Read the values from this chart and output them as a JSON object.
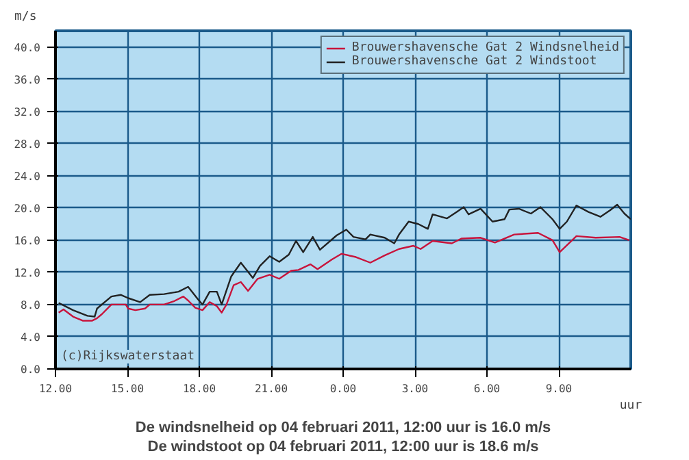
{
  "chart_data": {
    "type": "line",
    "xlabel": "uur",
    "ylabel": "m/s",
    "xlim": [
      "2011-02-03T12:00",
      "2011-02-04T12:00"
    ],
    "ylim": [
      0,
      42
    ],
    "xticks": [
      {
        "value": "2011-02-03T12:00",
        "label": "12.00"
      },
      {
        "value": "2011-02-03T15:00",
        "label": "15.00"
      },
      {
        "value": "2011-02-03T18:00",
        "label": "18.00"
      },
      {
        "value": "2011-02-03T21:00",
        "label": "21.00"
      },
      {
        "value": "2011-02-04T00:00",
        "label": "0.00"
      },
      {
        "value": "2011-02-04T03:00",
        "label": "3.00"
      },
      {
        "value": "2011-02-04T06:00",
        "label": "6.00"
      },
      {
        "value": "2011-02-04T09:00",
        "label": "9.00"
      }
    ],
    "yticks": [
      {
        "value": 0,
        "label": "0.0"
      },
      {
        "value": 4,
        "label": "4.0"
      },
      {
        "value": 8,
        "label": "8.0"
      },
      {
        "value": 12,
        "label": "12.0"
      },
      {
        "value": 16,
        "label": "16.0"
      },
      {
        "value": 20,
        "label": "20.0"
      },
      {
        "value": 24,
        "label": "24.0"
      },
      {
        "value": 28,
        "label": "28.0"
      },
      {
        "value": 32,
        "label": "32.0"
      },
      {
        "value": 36,
        "label": "36.0"
      },
      {
        "value": 40,
        "label": "40.0"
      }
    ],
    "grid": true,
    "legend": "top right",
    "series": [
      {
        "name": "Brouwershavensche Gat 2 Windsnelheid",
        "color": "#c8143c",
        "x": [
          "2011-02-03T12:08",
          "2011-02-03T12:20",
          "2011-02-03T12:44",
          "2011-02-03T13:08",
          "2011-02-03T13:32",
          "2011-02-03T13:44",
          "2011-02-03T13:56",
          "2011-02-03T14:20",
          "2011-02-03T14:56",
          "2011-02-03T15:02",
          "2011-02-03T15:20",
          "2011-02-03T15:44",
          "2011-02-03T15:56",
          "2011-02-03T16:32",
          "2011-02-03T16:56",
          "2011-02-03T17:20",
          "2011-02-03T17:32",
          "2011-02-03T17:50",
          "2011-02-03T18:08",
          "2011-02-03T18:26",
          "2011-02-03T18:44",
          "2011-02-03T18:56",
          "2011-02-03T19:08",
          "2011-02-03T19:26",
          "2011-02-03T19:44",
          "2011-02-03T20:02",
          "2011-02-03T20:26",
          "2011-02-03T20:56",
          "2011-02-03T21:20",
          "2011-02-03T21:50",
          "2011-02-03T22:08",
          "2011-02-03T22:38",
          "2011-02-03T22:56",
          "2011-02-03T23:32",
          "2011-02-03T23:56",
          "2011-02-04T00:32",
          "2011-02-04T01:08",
          "2011-02-04T01:44",
          "2011-02-04T02:20",
          "2011-02-04T02:56",
          "2011-02-04T03:14",
          "2011-02-04T03:44",
          "2011-02-04T04:32",
          "2011-02-04T04:56",
          "2011-02-04T05:44",
          "2011-02-04T06:20",
          "2011-02-04T07:08",
          "2011-02-04T08:08",
          "2011-02-04T08:44",
          "2011-02-04T09:02",
          "2011-02-04T09:44",
          "2011-02-04T10:32",
          "2011-02-04T11:32",
          "2011-02-04T11:56"
        ],
        "values": [
          7.0,
          7.4,
          6.5,
          6.0,
          6.0,
          6.3,
          6.8,
          8.0,
          8.0,
          7.5,
          7.3,
          7.5,
          8.0,
          8.0,
          8.4,
          9.0,
          8.5,
          7.6,
          7.3,
          8.3,
          7.8,
          7.0,
          8.0,
          10.4,
          10.8,
          9.7,
          11.2,
          11.7,
          11.2,
          12.2,
          12.3,
          13.0,
          12.4,
          13.6,
          14.3,
          13.9,
          13.2,
          14.1,
          14.9,
          15.3,
          14.9,
          15.9,
          15.6,
          16.2,
          16.3,
          15.7,
          16.7,
          16.9,
          16.0,
          14.5,
          16.5,
          16.3,
          16.4,
          16.0
        ]
      },
      {
        "name": "Brouwershavensche Gat 2 Windstoot",
        "color": "#222222",
        "x": [
          "2011-02-03T12:08",
          "2011-02-03T12:44",
          "2011-02-03T13:20",
          "2011-02-03T13:38",
          "2011-02-03T13:44",
          "2011-02-03T14:20",
          "2011-02-03T14:44",
          "2011-02-03T15:02",
          "2011-02-03T15:32",
          "2011-02-03T15:56",
          "2011-02-03T16:32",
          "2011-02-03T17:08",
          "2011-02-03T17:32",
          "2011-02-03T17:56",
          "2011-02-03T18:08",
          "2011-02-03T18:26",
          "2011-02-03T18:44",
          "2011-02-03T18:56",
          "2011-02-03T19:20",
          "2011-02-03T19:44",
          "2011-02-03T20:14",
          "2011-02-03T20:32",
          "2011-02-03T20:56",
          "2011-02-03T21:20",
          "2011-02-03T21:44",
          "2011-02-03T22:02",
          "2011-02-03T22:20",
          "2011-02-03T22:44",
          "2011-02-03T23:02",
          "2011-02-03T23:44",
          "2011-02-04T00:08",
          "2011-02-04T00:26",
          "2011-02-04T00:56",
          "2011-02-04T01:08",
          "2011-02-04T01:44",
          "2011-02-04T02:08",
          "2011-02-04T02:20",
          "2011-02-04T02:44",
          "2011-02-04T03:08",
          "2011-02-04T03:32",
          "2011-02-04T03:44",
          "2011-02-04T04:20",
          "2011-02-04T04:44",
          "2011-02-04T05:02",
          "2011-02-04T05:14",
          "2011-02-04T05:44",
          "2011-02-04T06:14",
          "2011-02-04T06:44",
          "2011-02-04T06:56",
          "2011-02-04T07:20",
          "2011-02-04T07:50",
          "2011-02-04T08:14",
          "2011-02-04T08:44",
          "2011-02-04T09:02",
          "2011-02-04T09:20",
          "2011-02-04T09:44",
          "2011-02-04T10:14",
          "2011-02-04T10:44",
          "2011-02-04T11:08",
          "2011-02-04T11:26",
          "2011-02-04T11:44",
          "2011-02-04T12:00"
        ],
        "values": [
          8.2,
          7.3,
          6.6,
          6.5,
          7.5,
          9.0,
          9.2,
          8.8,
          8.3,
          9.2,
          9.3,
          9.6,
          10.2,
          8.7,
          8.0,
          9.6,
          9.6,
          8.0,
          11.5,
          13.2,
          11.3,
          12.8,
          14.0,
          13.3,
          14.2,
          15.9,
          14.5,
          16.4,
          14.8,
          16.6,
          17.3,
          16.4,
          16.1,
          16.7,
          16.3,
          15.6,
          16.7,
          18.3,
          18.0,
          17.4,
          19.2,
          18.7,
          19.5,
          20.1,
          19.2,
          19.9,
          18.3,
          18.6,
          19.8,
          19.9,
          19.3,
          20.1,
          18.6,
          17.4,
          18.3,
          20.3,
          19.5,
          18.9,
          19.7,
          20.4,
          19.3,
          18.6
        ]
      }
    ],
    "annotations": [
      "(c)Rijkswaterstaat",
      "De windsnelheid op 04 februari 2011, 12:00 uur is 16.0 m/s",
      "De windstoot op 04 februari 2011, 12:00 uur is 18.6 m/s"
    ]
  }
}
